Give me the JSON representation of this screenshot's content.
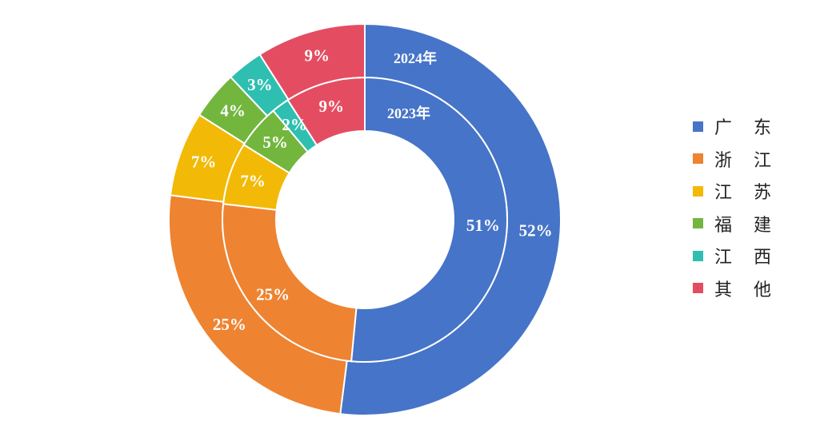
{
  "chart_data": {
    "type": "pie",
    "subtype": "nested-donut",
    "categories": [
      "广东",
      "浙江",
      "江苏",
      "福建",
      "江西",
      "其他"
    ],
    "legend_labels": [
      "广 东",
      "浙 江",
      "江 苏",
      "福 建",
      "江 西",
      "其 他"
    ],
    "colors": [
      "#4674C8",
      "#EE8331",
      "#F2BA06",
      "#73B63E",
      "#2EBFB1",
      "#E44D61"
    ],
    "series": [
      {
        "name": "2023年",
        "ring": "inner",
        "values": [
          51,
          25,
          7,
          5,
          2,
          9
        ],
        "labels": [
          "51%",
          "25%",
          "7%",
          "5%",
          "2%",
          "9%"
        ]
      },
      {
        "name": "2024年",
        "ring": "outer",
        "values": [
          52,
          25,
          7,
          4,
          3,
          9
        ],
        "labels": [
          "52%",
          "25%",
          "7%",
          "4%",
          "3%",
          "9%"
        ]
      }
    ],
    "title": "",
    "legend_position": "right"
  }
}
